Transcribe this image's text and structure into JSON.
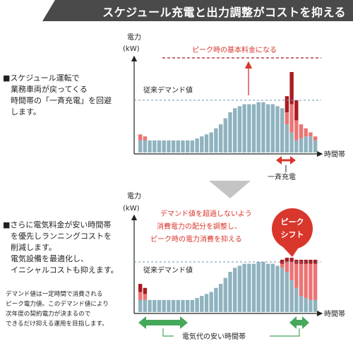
{
  "header": {
    "title": "スケジュール充電と出力調整がコストを抑える"
  },
  "panel1": {
    "text_lines": [
      "■スケジュール運転で",
      "　業務車両が戻ってくる",
      "　時間帯の「一斉充電」を回避",
      "　します。"
    ],
    "ylabel": "電力",
    "yunit": "(kW)",
    "xlabel": "時間帯",
    "baseline_label": "従来デマンド値",
    "peak_label": "ピーク時の基本料金になる",
    "rush_label": "一斉充電"
  },
  "panel2": {
    "text_lines": [
      "■さらに電気料金が安い時間帯",
      "　を優先しランニングコストを",
      "　削減します。",
      "　電気設備を最適化し、",
      "　イニシャルコストも抑えます。"
    ],
    "note_lines": [
      "デマンド値は一定時間で消費される",
      "ピーク電力値。このデマンド値により",
      "次年度の契約電力が決まるので",
      "できるだけ抑える運用を目指します。"
    ],
    "ylabel": "電力",
    "yunit": "(kW)",
    "xlabel": "時間帯",
    "baseline_label": "従来デマンド値",
    "callout_lines": [
      "デマンド値を超過しないよう",
      "消費電力の配分を調整し、",
      "ピーク時の電力消費を抑える"
    ],
    "badge_lines": [
      "ピーク",
      "シフト"
    ],
    "cheap_label": "電気代の安い時間帯"
  },
  "colors": {
    "bar": "#8fb3bf",
    "pink": "#ec7474",
    "dark_red": "#a81c22",
    "accent_red": "#d9362c",
    "green": "#46a85a",
    "banner": "#4a4a4a",
    "arrow_gray": "#c4c4c4",
    "dashed": "#6d93a6"
  },
  "chart_data": [
    {
      "type": "bar",
      "title": "",
      "xlabel": "時間帯",
      "ylabel": "電力(kW)",
      "series": [
        {
          "values": [
            3,
            3,
            3,
            3,
            3,
            3,
            3,
            3,
            3,
            3,
            3,
            3,
            3.5,
            4,
            4.5,
            5,
            6,
            7,
            8.5,
            10,
            11,
            11.5,
            12,
            12,
            12,
            12.5,
            12.5,
            12,
            12,
            11.5,
            11,
            7,
            5,
            3,
            3.5,
            4,
            4,
            3
          ]
        },
        {
          "values": [
            1.5,
            1,
            0,
            0,
            0,
            0,
            0,
            0,
            0,
            0,
            0,
            0,
            0,
            0,
            0,
            0,
            0,
            0,
            0,
            0,
            0,
            0,
            0,
            0,
            0,
            0,
            0,
            0,
            0,
            0,
            0,
            3,
            7,
            5,
            3.5,
            2,
            1,
            1
          ]
        },
        {
          "values": [
            0,
            0,
            0,
            0,
            0,
            0,
            0,
            0,
            0,
            0,
            0,
            0,
            0,
            0,
            0,
            0,
            0,
            0,
            0,
            0,
            0,
            0,
            0,
            0,
            0,
            0,
            0,
            0,
            0,
            0,
            0,
            4,
            8,
            5,
            0,
            0,
            0,
            0
          ]
        }
      ]
    },
    {
      "type": "bar",
      "title": "",
      "xlabel": "時間帯",
      "ylabel": "電力(kW)",
      "series": [
        {
          "values": [
            3,
            3,
            3,
            3,
            3,
            3,
            3,
            3,
            3,
            3,
            3,
            3,
            3.5,
            4,
            4.5,
            5,
            6,
            7,
            8.5,
            10,
            11,
            11.5,
            12,
            12,
            12,
            12.5,
            12.5,
            12,
            12,
            11.5,
            11,
            10,
            8,
            6,
            4,
            3.5,
            3,
            3
          ]
        },
        {
          "values": [
            2,
            1.5,
            0,
            0,
            0,
            0,
            0,
            0,
            0,
            0,
            0,
            0,
            0,
            0,
            0,
            0,
            0,
            0,
            0,
            0,
            0,
            0,
            0,
            0,
            0,
            0,
            0,
            0,
            0,
            0,
            1,
            2.5,
            4.5,
            6,
            8,
            8.5,
            9,
            9
          ]
        },
        {
          "values": [
            2,
            1.5,
            0,
            0,
            0,
            0,
            0,
            0,
            0,
            0,
            0,
            0,
            0,
            0,
            0,
            0,
            0,
            0,
            0,
            0,
            0,
            0,
            0,
            0,
            0,
            0,
            0,
            0,
            0,
            0,
            1,
            1,
            1,
            1,
            1,
            1,
            1,
            1
          ]
        }
      ]
    }
  ]
}
